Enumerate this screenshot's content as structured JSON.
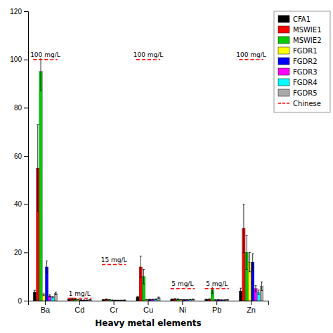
{
  "chart_data": {
    "type": "bar",
    "xlabel": "Heavy metal elements",
    "categories": [
      "Ba",
      "Cd",
      "Cr",
      "Cu",
      "Ni",
      "Pb",
      "Zn"
    ],
    "series": [
      {
        "name": "CFA1",
        "color": "#000000",
        "values": [
          3.5,
          0.5,
          0.4,
          1.5,
          0.6,
          0.5,
          4.0
        ],
        "errors": [
          0.8,
          0.1,
          0.08,
          0.4,
          0.15,
          0.15,
          1.2
        ]
      },
      {
        "name": "MSWIE1",
        "color": "#FF0000",
        "values": [
          55,
          0.8,
          0.6,
          14,
          0.7,
          0.6,
          30
        ],
        "errors": [
          18,
          0.3,
          0.15,
          4.5,
          0.2,
          0.15,
          10
        ]
      },
      {
        "name": "MSWIE2",
        "color": "#00CC00",
        "values": [
          95,
          0.6,
          0.4,
          10,
          0.6,
          4.5,
          20
        ],
        "errors": [
          8,
          0.2,
          0.08,
          3.0,
          0.15,
          1.5,
          7
        ]
      },
      {
        "name": "FGDR1",
        "color": "#FFFF00",
        "values": [
          2.5,
          0.4,
          0.25,
          0.4,
          0.4,
          0.3,
          16
        ],
        "errors": [
          0.4,
          0.08,
          0.04,
          0.08,
          0.07,
          0.06,
          4
        ]
      },
      {
        "name": "FGDR2",
        "color": "#0000FF",
        "values": [
          14,
          0.3,
          0.2,
          0.5,
          0.4,
          0.4,
          16
        ],
        "errors": [
          2.5,
          0.06,
          0.03,
          0.1,
          0.07,
          0.08,
          3.5
        ]
      },
      {
        "name": "FGDR3",
        "color": "#FF00FF",
        "values": [
          2.0,
          0.25,
          0.2,
          0.5,
          0.4,
          0.3,
          5.0
        ],
        "errors": [
          0.4,
          0.04,
          0.03,
          0.08,
          0.07,
          0.06,
          1.2
        ]
      },
      {
        "name": "FGDR4",
        "color": "#00FFFF",
        "values": [
          1.5,
          0.25,
          0.2,
          0.6,
          0.45,
          0.3,
          3.5
        ],
        "errors": [
          0.3,
          0.04,
          0.03,
          0.12,
          0.08,
          0.06,
          0.9
        ]
      },
      {
        "name": "FGDR5",
        "color": "#AAAAAA",
        "values": [
          3.0,
          0.35,
          0.25,
          1.2,
          0.55,
          0.4,
          6.0
        ],
        "errors": [
          0.5,
          0.07,
          0.04,
          0.3,
          0.1,
          0.08,
          1.8
        ]
      }
    ],
    "ylim": [
      0,
      120
    ],
    "yticks": [
      0,
      20,
      40,
      60,
      80,
      100,
      120
    ],
    "grid": false,
    "legend": "upper right",
    "annotations": [
      {
        "category": "Ba",
        "value": 100,
        "label": "100 mg/L"
      },
      {
        "category": "Cd",
        "value": 1,
        "label": "1 mg/L"
      },
      {
        "category": "Cr",
        "value": 15,
        "label": "15 mg/L"
      },
      {
        "category": "Cu",
        "value": 100,
        "label": "100 mg/L"
      },
      {
        "category": "Ni",
        "value": 5,
        "label": "5 mg/L"
      },
      {
        "category": "Pb",
        "value": 5,
        "label": "5 mg/L"
      },
      {
        "category": "Zn",
        "value": 100,
        "label": "100 mg/L"
      }
    ],
    "reference_name": "Chinese",
    "reference_color": "#FF0000"
  }
}
